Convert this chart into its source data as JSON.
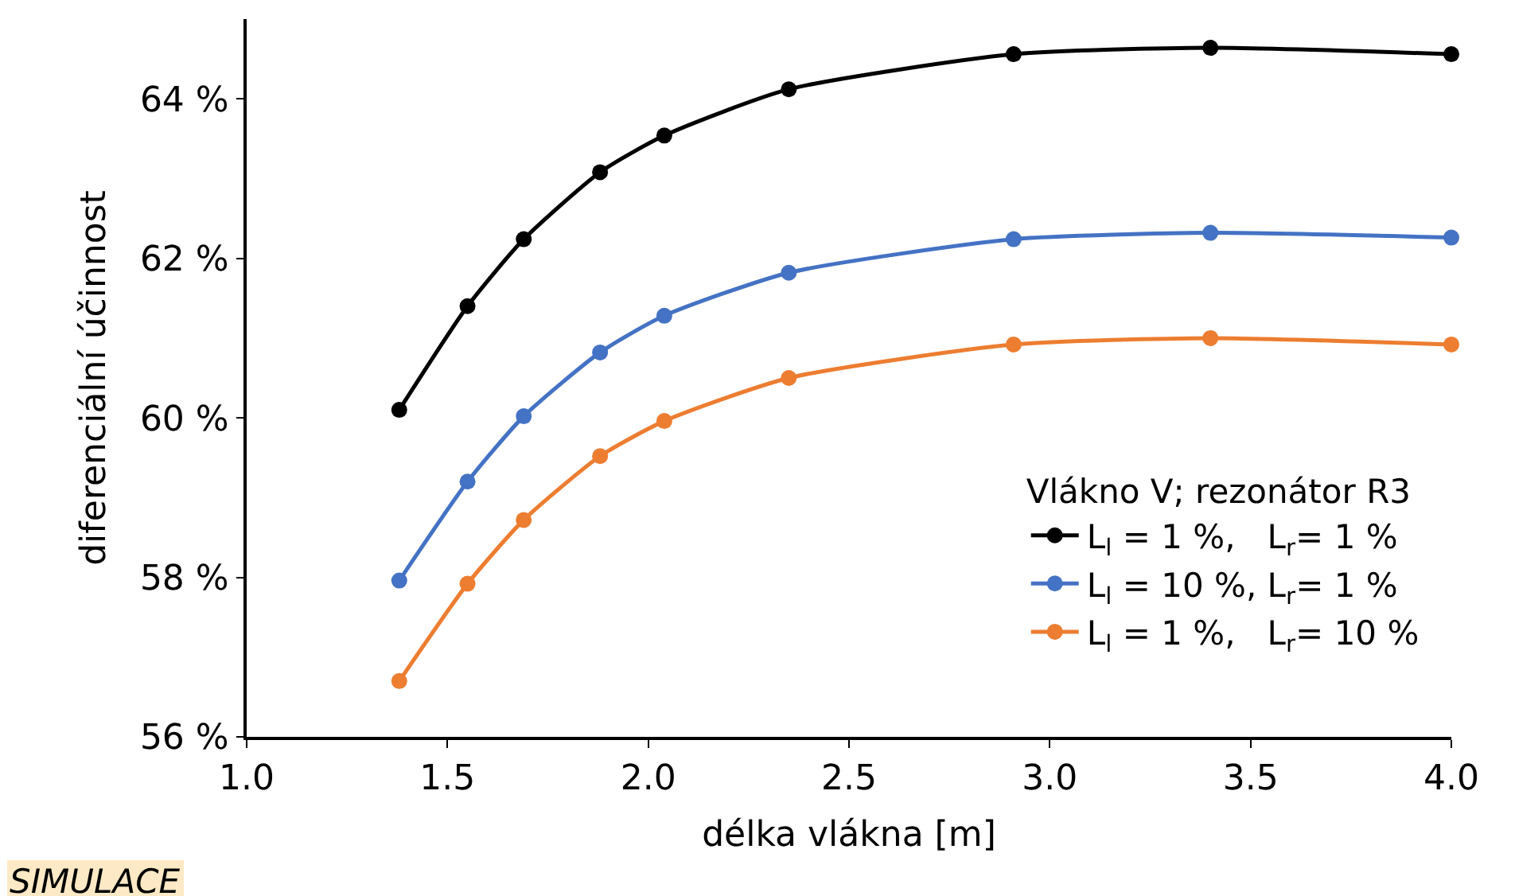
{
  "chart_data": {
    "type": "line",
    "xlabel": "délka vlákna [m]",
    "ylabel": "diferenciální účinnost",
    "legend_title": "Vlákno V; rezonátor R3",
    "legend": "bottom right",
    "marker": "circle",
    "line_style": "solid",
    "x": [
      1.38,
      1.55,
      1.69,
      1.88,
      2.04,
      2.35,
      2.91,
      3.4,
      4.0
    ],
    "xlim": [
      1.0,
      4.0
    ],
    "xticks": [
      {
        "value": 1.0,
        "label": "1.0"
      },
      {
        "value": 1.5,
        "label": "1.5"
      },
      {
        "value": 2.0,
        "label": "2.0"
      },
      {
        "value": 2.5,
        "label": "2.5"
      },
      {
        "value": 3.0,
        "label": "3.0"
      },
      {
        "value": 3.5,
        "label": "3.5"
      },
      {
        "value": 4.0,
        "label": "4.0"
      }
    ],
    "ylim": [
      56,
      65
    ],
    "yticks": [
      {
        "value": 56,
        "label": "56 %"
      },
      {
        "value": 58,
        "label": "58 %"
      },
      {
        "value": 60,
        "label": "60 %"
      },
      {
        "value": 62,
        "label": "62 %"
      },
      {
        "value": 64,
        "label": "64 %"
      }
    ],
    "series": [
      {
        "name": "L$_{l}$ = 1 %,   L$_{r}$= 1 %",
        "color": "#000000",
        "values": [
          60.1,
          61.4,
          62.24,
          63.08,
          63.54,
          64.12,
          64.56,
          64.64,
          64.56
        ]
      },
      {
        "name": "L$_{l}$ = 10 %, L$_{r}$= 1 %",
        "color": "#4472c4",
        "values": [
          57.96,
          59.2,
          60.02,
          60.82,
          61.28,
          61.82,
          62.24,
          62.32,
          62.26
        ]
      },
      {
        "name": "L$_{l}$ = 1 %,   L$_{r}$= 10 %",
        "color": "#ed7d31",
        "values": [
          56.7,
          57.92,
          58.72,
          59.52,
          59.96,
          60.5,
          60.92,
          61.0,
          60.92
        ]
      }
    ],
    "annotations": [
      "SIMULACE"
    ]
  }
}
